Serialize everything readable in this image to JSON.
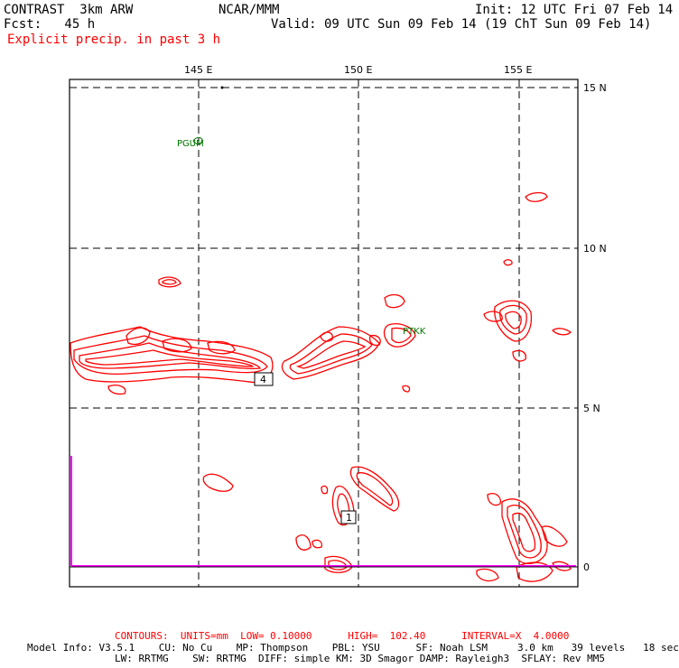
{
  "header": {
    "model": "CONTRAST  3km ARW",
    "org": "NCAR/MMM",
    "init": "Init: 12 UTC Fri 07 Feb 14",
    "fcst": "Fcst:   45 h",
    "valid": "Valid: 09 UTC Sun 09 Feb 14 (19 ChT Sun 09 Feb 14)",
    "field": "Explicit precip. in past 3 h"
  },
  "map": {
    "lon_labels": [
      "145 E",
      "150 E",
      "155 E"
    ],
    "lat_labels": [
      "15 N",
      "10 N",
      "5 N",
      "0"
    ],
    "stations": [
      "PGUM",
      "PTKK"
    ],
    "contour_labels": [
      "4",
      "1"
    ],
    "colors": {
      "precip": "#ff0000",
      "station": "#007700",
      "boundary": "#ff00ff",
      "grid": "#000000"
    }
  },
  "footer": {
    "contours": "CONTOURS:  UNITS=mm  LOW= 0.10000      HIGH=  102.40      INTERVAL=X  4.0000",
    "model_info": "Model Info: V3.5.1    CU: No Cu    MP: Thompson    PBL: YSU      SF: Noah LSM     3.0 km   39 levels   18 sec",
    "physics": "LW: RRTMG    SW: RRTMG  DIFF: simple KM: 3D Smagor DAMP: Rayleigh3  SFLAY: Rev MM5"
  }
}
